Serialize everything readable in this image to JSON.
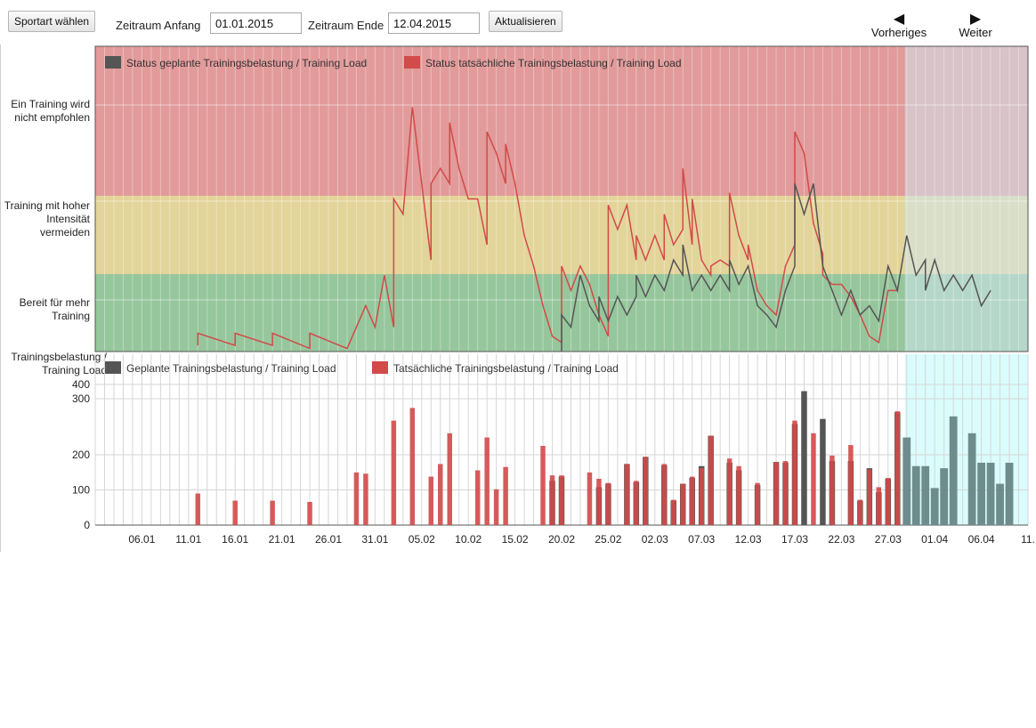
{
  "toolbar": {
    "sport_button": "Sportart wählen",
    "start_label": "Zeitraum Anfang",
    "start_value": "01.01.2015",
    "end_label": "Zeitraum Ende",
    "end_value": "12.04.2015",
    "refresh_button": "Aktualisieren",
    "prev_label": "Vorheriges",
    "next_label": "Weiter"
  },
  "zones": {
    "high": "Ein Training wird nicht empfohlen",
    "mid": "Training mit hoher Intensität vermeiden",
    "low": "Bereit für mehr Training"
  },
  "colors": {
    "zone_red": "#e29a9a",
    "zone_yellow": "#e3d49a",
    "zone_green": "#96c69c",
    "planned": "#555555",
    "actual": "#d24a4a",
    "forecast_bar": "#6f8c8c",
    "forecast_bg": "#dafcfc"
  },
  "chart_data": [
    {
      "type": "line",
      "legend": [
        "Status geplante Trainingsbelastung / Training Load",
        "Status tatsächliche Trainingsbelastung / Training Load"
      ],
      "legend_position": "top-left",
      "grid": true,
      "series": [
        {
          "name": "Status tatsächliche Trainingsbelastung / Training Load",
          "points": [
            [
              11,
              0.02
            ],
            [
              11,
              0.06
            ],
            [
              15,
              0.02
            ],
            [
              15,
              0.06
            ],
            [
              19,
              0.02
            ],
            [
              19,
              0.06
            ],
            [
              23,
              0.01
            ],
            [
              23,
              0.06
            ],
            [
              27,
              0.01
            ],
            [
              29,
              0.15
            ],
            [
              30,
              0.08
            ],
            [
              31,
              0.25
            ],
            [
              32,
              0.08
            ],
            [
              32,
              0.5
            ],
            [
              33,
              0.45
            ],
            [
              34,
              0.8
            ],
            [
              35,
              0.55
            ],
            [
              36,
              0.3
            ],
            [
              36,
              0.55
            ],
            [
              37,
              0.6
            ],
            [
              38,
              0.55
            ],
            [
              38,
              0.75
            ],
            [
              39,
              0.6
            ],
            [
              40,
              0.5
            ],
            [
              41,
              0.5
            ],
            [
              42,
              0.35
            ],
            [
              42,
              0.72
            ],
            [
              43,
              0.65
            ],
            [
              44,
              0.55
            ],
            [
              44,
              0.68
            ],
            [
              45,
              0.55
            ],
            [
              46,
              0.38
            ],
            [
              47,
              0.28
            ],
            [
              48,
              0.15
            ],
            [
              49,
              0.05
            ],
            [
              50,
              0.03
            ],
            [
              50,
              0.28
            ],
            [
              51,
              0.2
            ],
            [
              52,
              0.28
            ],
            [
              53,
              0.22
            ],
            [
              54,
              0.12
            ],
            [
              55,
              0.05
            ],
            [
              55,
              0.48
            ],
            [
              56,
              0.4
            ],
            [
              57,
              0.48
            ],
            [
              58,
              0.3
            ],
            [
              58,
              0.38
            ],
            [
              59,
              0.3
            ],
            [
              60,
              0.38
            ],
            [
              61,
              0.3
            ],
            [
              61,
              0.45
            ],
            [
              62,
              0.35
            ],
            [
              63,
              0.4
            ],
            [
              63,
              0.6
            ],
            [
              64,
              0.35
            ],
            [
              64,
              0.5
            ],
            [
              65,
              0.3
            ],
            [
              66,
              0.25
            ],
            [
              66,
              0.28
            ],
            [
              67,
              0.3
            ],
            [
              68,
              0.28
            ],
            [
              68,
              0.52
            ],
            [
              69,
              0.38
            ],
            [
              70,
              0.3
            ],
            [
              70,
              0.35
            ],
            [
              71,
              0.2
            ],
            [
              72,
              0.15
            ],
            [
              73,
              0.12
            ],
            [
              74,
              0.28
            ],
            [
              75,
              0.35
            ],
            [
              75,
              0.72
            ],
            [
              76,
              0.65
            ],
            [
              77,
              0.42
            ],
            [
              78,
              0.32
            ],
            [
              78,
              0.25
            ],
            [
              79,
              0.22
            ],
            [
              80,
              0.22
            ],
            [
              81,
              0.18
            ],
            [
              82,
              0.12
            ],
            [
              83,
              0.05
            ],
            [
              84,
              0.03
            ],
            [
              85,
              0.2
            ],
            [
              86,
              0.2
            ]
          ]
        },
        {
          "name": "Status geplante Trainingsbelastung / Training Load",
          "points": [
            [
              50,
              0.0
            ],
            [
              50,
              0.12
            ],
            [
              51,
              0.08
            ],
            [
              52,
              0.25
            ],
            [
              53,
              0.15
            ],
            [
              54,
              0.1
            ],
            [
              54,
              0.18
            ],
            [
              55,
              0.1
            ],
            [
              56,
              0.18
            ],
            [
              57,
              0.12
            ],
            [
              58,
              0.18
            ],
            [
              58,
              0.25
            ],
            [
              59,
              0.18
            ],
            [
              60,
              0.25
            ],
            [
              61,
              0.2
            ],
            [
              62,
              0.3
            ],
            [
              63,
              0.25
            ],
            [
              63,
              0.35
            ],
            [
              64,
              0.2
            ],
            [
              65,
              0.25
            ],
            [
              66,
              0.2
            ],
            [
              67,
              0.25
            ],
            [
              68,
              0.2
            ],
            [
              68,
              0.3
            ],
            [
              69,
              0.22
            ],
            [
              70,
              0.28
            ],
            [
              71,
              0.15
            ],
            [
              72,
              0.12
            ],
            [
              73,
              0.08
            ],
            [
              74,
              0.2
            ],
            [
              75,
              0.28
            ],
            [
              75,
              0.55
            ],
            [
              76,
              0.45
            ],
            [
              77,
              0.55
            ],
            [
              78,
              0.28
            ],
            [
              79,
              0.2
            ],
            [
              80,
              0.12
            ],
            [
              81,
              0.2
            ],
            [
              82,
              0.12
            ],
            [
              83,
              0.15
            ],
            [
              84,
              0.1
            ],
            [
              85,
              0.28
            ],
            [
              86,
              0.2
            ],
            [
              87,
              0.38
            ],
            [
              88,
              0.25
            ],
            [
              89,
              0.3
            ],
            [
              89,
              0.2
            ],
            [
              90,
              0.3
            ],
            [
              91,
              0.2
            ],
            [
              92,
              0.25
            ],
            [
              93,
              0.2
            ],
            [
              94,
              0.25
            ],
            [
              95,
              0.15
            ],
            [
              96,
              0.2
            ]
          ]
        }
      ]
    },
    {
      "type": "bar",
      "ylabel": "Trainingsbelastung / Training Load",
      "y_ticks": [
        0,
        100,
        200,
        300,
        400
      ],
      "ylim": [
        0,
        400
      ],
      "x_tick_labels": [
        "06.01",
        "11.01",
        "16.01",
        "21.01",
        "26.01",
        "31.01",
        "05.02",
        "10.02",
        "15.02",
        "20.02",
        "25.02",
        "02.03",
        "07.03",
        "12.03",
        "17.03",
        "22.03",
        "27.03",
        "01.04",
        "06.04",
        "11."
      ],
      "legend": [
        "Geplante Trainingsbelastung / Training Load",
        "Tatsächliche Trainingsbelastung / Training Load"
      ],
      "legend_position": "top-left",
      "grid": true,
      "actual": [
        [
          11,
          75
        ],
        [
          15,
          58
        ],
        [
          19,
          58
        ],
        [
          23,
          55
        ],
        [
          28,
          125
        ],
        [
          29,
          122
        ],
        [
          32,
          248
        ],
        [
          34,
          278
        ],
        [
          36,
          115
        ],
        [
          37,
          145
        ],
        [
          38,
          218
        ],
        [
          41,
          130
        ],
        [
          42,
          208
        ],
        [
          43,
          85
        ],
        [
          44,
          138
        ],
        [
          48,
          188
        ],
        [
          49,
          118
        ],
        [
          50,
          118
        ],
        [
          53,
          125
        ],
        [
          54,
          110
        ],
        [
          55,
          100
        ],
        [
          57,
          145
        ],
        [
          58,
          105
        ],
        [
          59,
          162
        ],
        [
          61,
          145
        ],
        [
          62,
          60
        ],
        [
          63,
          98
        ],
        [
          64,
          115
        ],
        [
          65,
          135
        ],
        [
          66,
          212
        ],
        [
          68,
          158
        ],
        [
          69,
          140
        ],
        [
          71,
          100
        ],
        [
          73,
          150
        ],
        [
          74,
          152
        ],
        [
          75,
          248
        ],
        [
          77,
          218
        ],
        [
          79,
          165
        ],
        [
          81,
          190
        ],
        [
          82,
          60
        ],
        [
          83,
          132
        ],
        [
          84,
          90
        ],
        [
          85,
          112
        ],
        [
          86,
          270
        ]
      ],
      "planned": [
        [
          49,
          105
        ],
        [
          50,
          115
        ],
        [
          54,
          90
        ],
        [
          55,
          98
        ],
        [
          57,
          145
        ],
        [
          58,
          102
        ],
        [
          59,
          162
        ],
        [
          61,
          142
        ],
        [
          62,
          58
        ],
        [
          63,
          98
        ],
        [
          64,
          112
        ],
        [
          65,
          140
        ],
        [
          66,
          212
        ],
        [
          68,
          148
        ],
        [
          69,
          130
        ],
        [
          71,
          95
        ],
        [
          73,
          150
        ],
        [
          74,
          148
        ],
        [
          75,
          240
        ],
        [
          76,
          318
        ],
        [
          78,
          252
        ],
        [
          79,
          152
        ],
        [
          81,
          152
        ],
        [
          82,
          58
        ],
        [
          83,
          135
        ],
        [
          84,
          78
        ],
        [
          85,
          110
        ],
        [
          86,
          268
        ]
      ],
      "forecast": [
        [
          87,
          208
        ],
        [
          88,
          140
        ],
        [
          89,
          140
        ],
        [
          90,
          88
        ],
        [
          91,
          135
        ],
        [
          92,
          258
        ],
        [
          94,
          218
        ],
        [
          95,
          148
        ],
        [
          96,
          148
        ],
        [
          97,
          98
        ],
        [
          98,
          148
        ]
      ]
    }
  ]
}
